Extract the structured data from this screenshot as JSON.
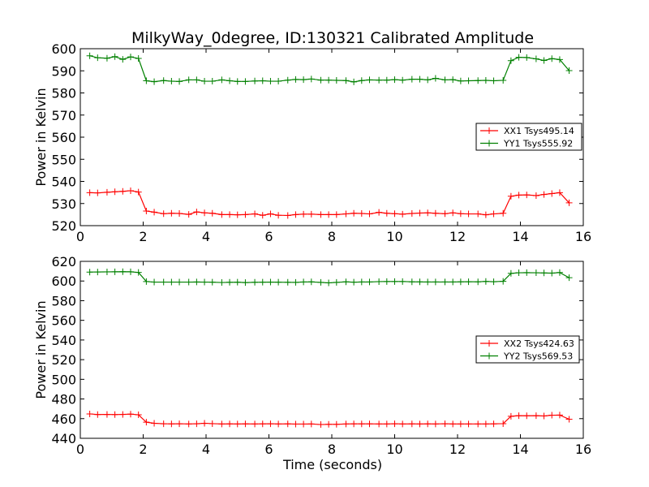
{
  "chart_data": [
    {
      "type": "line",
      "title": "MilkyWay_0degree, ID:130321 Calibrated Amplitude",
      "xlabel": "",
      "ylabel": "Power in Kelvin",
      "xlim": [
        0,
        16
      ],
      "ylim": [
        520,
        600
      ],
      "xticks": [
        "0",
        "2",
        "4",
        "6",
        "8",
        "10",
        "12",
        "14",
        "16"
      ],
      "yticks": [
        "520",
        "530",
        "540",
        "550",
        "560",
        "570",
        "580",
        "590",
        "600"
      ],
      "legend_position": "center-right",
      "grid": false,
      "x": [
        0.3,
        0.55,
        0.85,
        1.1,
        1.35,
        1.6,
        1.85,
        2.1,
        2.35,
        2.65,
        2.9,
        3.15,
        3.45,
        3.7,
        3.95,
        4.2,
        4.5,
        4.75,
        5.0,
        5.25,
        5.55,
        5.8,
        6.05,
        6.3,
        6.6,
        6.85,
        7.1,
        7.35,
        7.65,
        7.9,
        8.15,
        8.45,
        8.7,
        8.95,
        9.2,
        9.5,
        9.75,
        10.0,
        10.25,
        10.55,
        10.8,
        11.05,
        11.3,
        11.6,
        11.85,
        12.1,
        12.35,
        12.65,
        12.9,
        13.15,
        13.45,
        13.7,
        13.95,
        14.2,
        14.5,
        14.75,
        15.0,
        15.25,
        15.55
      ],
      "series": [
        {
          "name": "XX1 Tsys495.14",
          "color": "#ff0000",
          "values": [
            534.9,
            534.8,
            535.1,
            535.3,
            535.5,
            535.8,
            535.2,
            526.6,
            526.1,
            525.4,
            525.6,
            525.5,
            525.1,
            526.2,
            525.8,
            525.6,
            525.0,
            525.0,
            524.9,
            525.0,
            525.3,
            524.7,
            525.3,
            524.7,
            524.6,
            525.0,
            525.2,
            525.2,
            525.0,
            525.0,
            525.0,
            525.3,
            525.6,
            525.5,
            525.3,
            526.0,
            525.6,
            525.4,
            525.2,
            525.5,
            525.7,
            525.8,
            525.6,
            525.4,
            525.8,
            525.4,
            525.3,
            525.3,
            524.9,
            525.3,
            525.6,
            533.3,
            533.8,
            533.9,
            533.6,
            534.1,
            534.5,
            534.9,
            530.3
          ]
        },
        {
          "name": "YY1 Tsys555.92",
          "color": "#008000",
          "values": [
            596.8,
            595.9,
            595.7,
            596.4,
            595.2,
            596.3,
            595.6,
            585.5,
            585.1,
            585.6,
            585.3,
            585.2,
            585.9,
            585.9,
            585.3,
            585.3,
            585.9,
            585.5,
            585.2,
            585.2,
            585.4,
            585.5,
            585.3,
            585.3,
            585.8,
            586.1,
            586.0,
            586.3,
            585.8,
            585.8,
            585.7,
            585.6,
            585.0,
            585.6,
            585.9,
            585.8,
            585.8,
            586.0,
            585.8,
            586.2,
            586.2,
            585.9,
            586.6,
            585.9,
            586.0,
            585.4,
            585.5,
            585.6,
            585.7,
            585.5,
            585.7,
            594.6,
            596.1,
            596.0,
            595.4,
            594.7,
            595.5,
            595.1,
            590.1
          ]
        }
      ]
    },
    {
      "type": "line",
      "title": "",
      "xlabel": "Time (seconds)",
      "ylabel": "Power in Kelvin",
      "xlim": [
        0,
        16
      ],
      "ylim": [
        440,
        620
      ],
      "xticks": [
        "0",
        "2",
        "4",
        "6",
        "8",
        "10",
        "12",
        "14",
        "16"
      ],
      "yticks": [
        "440",
        "460",
        "480",
        "500",
        "520",
        "540",
        "560",
        "580",
        "600",
        "620"
      ],
      "legend_position": "center-right",
      "grid": false,
      "x": [
        0.3,
        0.55,
        0.85,
        1.1,
        1.35,
        1.6,
        1.85,
        2.1,
        2.35,
        2.65,
        2.9,
        3.15,
        3.45,
        3.7,
        3.95,
        4.2,
        4.5,
        4.75,
        5.0,
        5.25,
        5.55,
        5.8,
        6.05,
        6.3,
        6.6,
        6.85,
        7.1,
        7.35,
        7.65,
        7.9,
        8.15,
        8.45,
        8.7,
        8.95,
        9.2,
        9.5,
        9.75,
        10.0,
        10.25,
        10.55,
        10.8,
        11.05,
        11.3,
        11.6,
        11.85,
        12.1,
        12.35,
        12.65,
        12.9,
        13.15,
        13.45,
        13.7,
        13.95,
        14.2,
        14.5,
        14.75,
        15.0,
        15.25,
        15.55
      ],
      "series": [
        {
          "name": "XX2 Tsys424.63",
          "color": "#ff0000",
          "values": [
            464.8,
            464.2,
            464.3,
            464.1,
            464.3,
            464.6,
            463.9,
            456.4,
            455.3,
            454.8,
            454.7,
            454.8,
            454.6,
            454.8,
            455.3,
            454.9,
            454.6,
            454.7,
            454.6,
            454.7,
            454.6,
            454.7,
            454.8,
            454.6,
            454.7,
            454.5,
            454.5,
            454.6,
            454.0,
            454.2,
            454.2,
            454.6,
            454.7,
            454.7,
            454.7,
            454.6,
            454.6,
            454.8,
            454.6,
            454.7,
            454.6,
            454.7,
            454.6,
            454.8,
            454.6,
            454.6,
            454.6,
            454.6,
            454.6,
            454.7,
            454.9,
            462.4,
            463.0,
            462.9,
            463.0,
            462.7,
            463.5,
            463.6,
            459.4
          ]
        },
        {
          "name": "YY2 Tsys569.53",
          "color": "#008000",
          "values": [
            609.1,
            609.2,
            609.3,
            609.4,
            609.5,
            609.4,
            608.7,
            599.5,
            598.9,
            598.9,
            598.9,
            598.9,
            598.9,
            599.0,
            598.9,
            598.8,
            598.5,
            598.7,
            598.8,
            598.4,
            598.7,
            598.8,
            598.9,
            598.8,
            598.7,
            598.6,
            599.0,
            599.1,
            598.6,
            598.1,
            598.6,
            599.2,
            598.8,
            599.0,
            599.0,
            599.4,
            599.5,
            599.5,
            599.5,
            599.2,
            599.1,
            599.0,
            599.0,
            599.0,
            599.0,
            599.2,
            599.3,
            599.2,
            599.6,
            599.3,
            599.7,
            607.8,
            608.4,
            608.5,
            608.4,
            608.2,
            608.0,
            608.6,
            603.4
          ]
        }
      ]
    }
  ]
}
